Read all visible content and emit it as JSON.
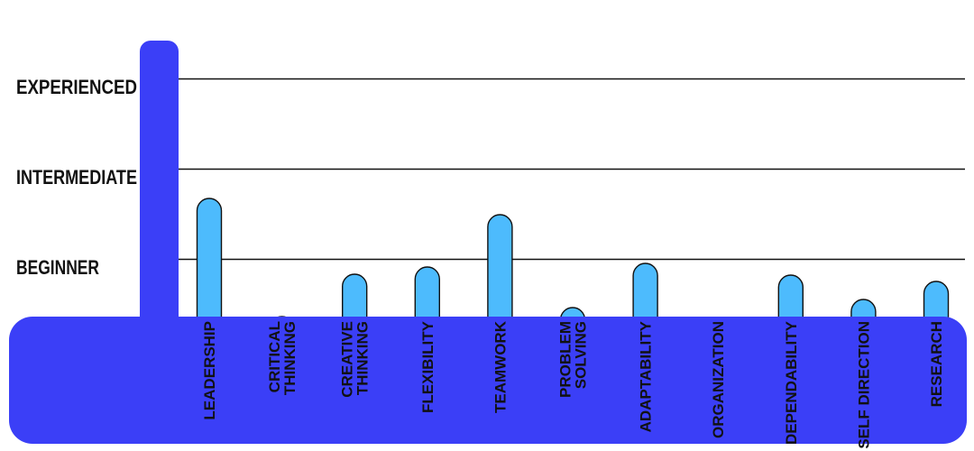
{
  "chart_data": {
    "type": "bar",
    "levels": [
      "BEGINNER",
      "INTERMEDIATE",
      "EXPERIENCED"
    ],
    "categories": [
      [
        "LEADERSHIP"
      ],
      [
        "CRITICAL",
        "THINKING"
      ],
      [
        "CREATIVE",
        "THINKING"
      ],
      [
        "FLEXIBILITY"
      ],
      [
        "TEAMWORK"
      ],
      [
        "PROBLEM",
        "SOLVING"
      ],
      [
        "ADAPTABILITY"
      ],
      [
        "ORGANIZATION"
      ],
      [
        "DEPENDABILITY"
      ],
      [
        "SELF DIRECTION"
      ],
      [
        "RESEARCH"
      ]
    ],
    "values": [
      1.67,
      0.36,
      0.83,
      0.91,
      1.49,
      0.46,
      0.95,
      0.31,
      0.82,
      0.55,
      0.75
    ],
    "ylim": [
      0,
      3
    ],
    "grid": true,
    "colors": {
      "bar": "#4dbbfd",
      "base": "#3b3ff7",
      "gridline": "#111111",
      "text": "#111111"
    }
  }
}
